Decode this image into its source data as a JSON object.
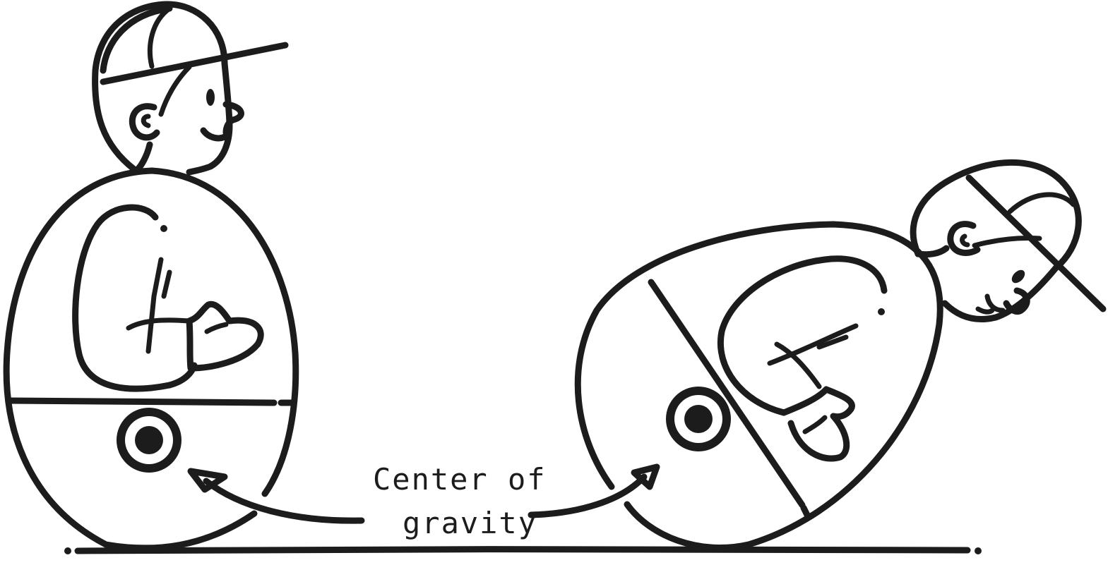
{
  "caption": {
    "line1": "Center of",
    "line2": "gravity"
  },
  "colors": {
    "ink": "#1c1c1c",
    "background": "#ffffff"
  },
  "icons": [
    "center-of-gravity-marker-icon",
    "arrow-icon"
  ]
}
